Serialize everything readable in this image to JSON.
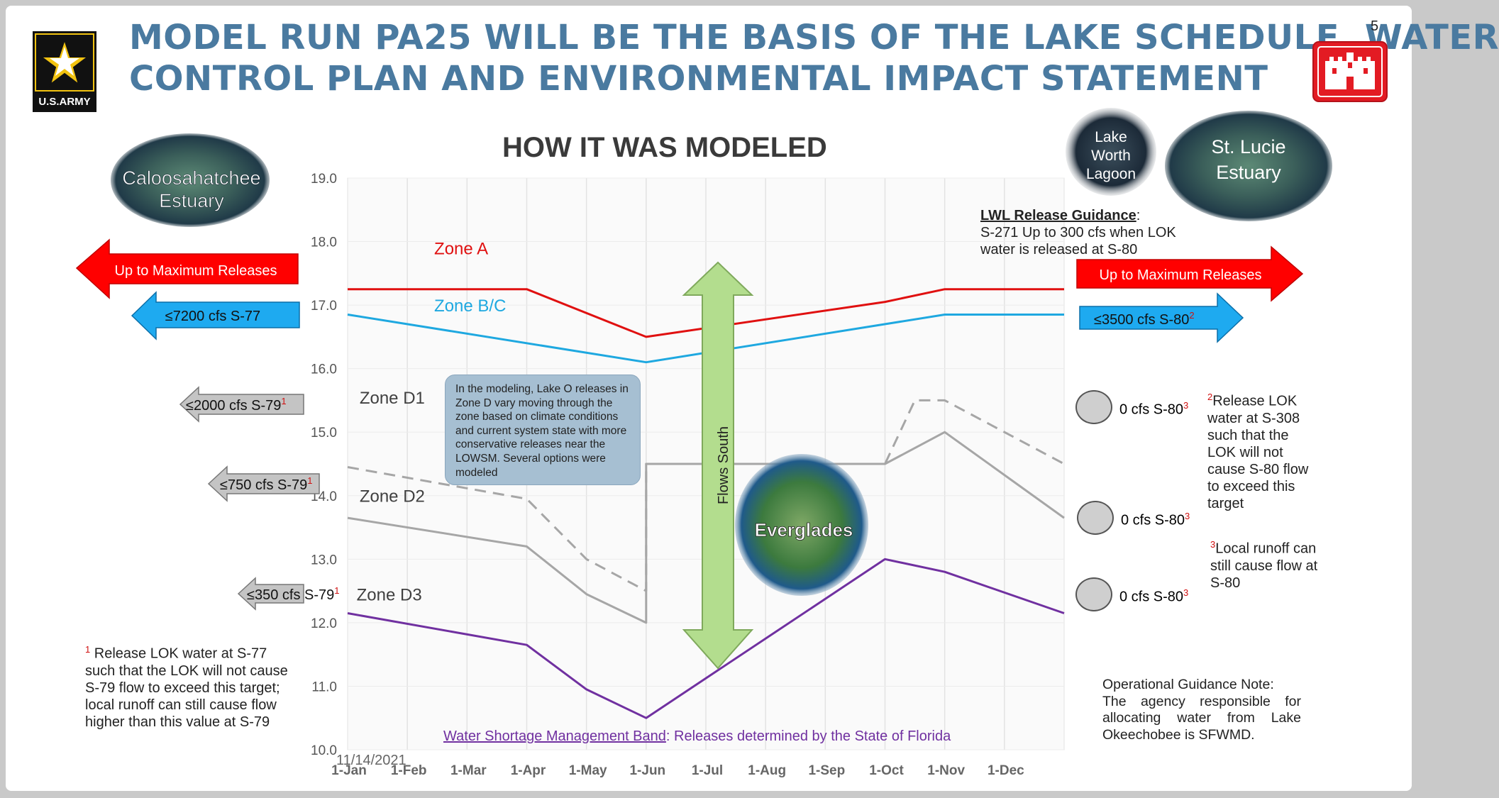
{
  "slide": {
    "page_number": "5",
    "title_line1": "MODEL RUN PA25 WILL BE THE BASIS OF THE LAKE SCHEDULE, WATER",
    "title_line2": "CONTROL PLAN AND ENVIRONMENTAL IMPACT STATEMENT",
    "date": "11/14/2021",
    "army_logo_text": "U.S.ARMY"
  },
  "photos": {
    "caloosahatchee": "Caloosahatchee Estuary",
    "lake_worth_1": "Lake",
    "lake_worth_2": "Worth",
    "lake_worth_3": "Lagoon",
    "st_lucie_1": "St. Lucie",
    "st_lucie_2": "Estuary",
    "everglades": "Everglades"
  },
  "west": {
    "max_release": "Up to Maximum Releases",
    "s77": "≤7200 cfs S-77",
    "s79_2000": "≤2000 cfs S-79",
    "s79_750": "≤750 cfs S-79",
    "s79_350": "≤350 cfs S-79",
    "sup1": "1",
    "footnote_1": "Release LOK water at S-77 such that the LOK will not cause S-79 flow to exceed this target; local runoff can still cause flow higher than this value at S-79"
  },
  "east": {
    "lwl_heading": "LWL Release Guidance",
    "lwl_colon": ":",
    "lwl_text": "S-271 Up to 300 cfs when LOK water is released at S-80",
    "max_release": "Up to Maximum Releases",
    "s80_3500": "≤3500 cfs S-80",
    "sup2": "2",
    "zero_s80": "0 cfs S-80",
    "sup3": "3",
    "footnote_2": "Release LOK water at S-308 such that the LOK will not cause S-80 flow to exceed this target",
    "footnote_3": "Local runoff can still cause flow at S-80",
    "op_heading": "Operational Guidance Note:",
    "op_text": "The agency responsible for allocating water from Lake Okeechobee is SFWMD."
  },
  "callout": "In the modeling, Lake O releases in Zone D vary moving through the zone based on climate conditions and current system state with more conservative releases near the LOWSM. Several options were modeled",
  "flows_label": "Flows South",
  "band_note": {
    "link": "Water Shortage Management Band",
    "rest": ": Releases determined by the State of Florida"
  },
  "chart_data": {
    "type": "line",
    "title": "HOW IT WAS MODELED",
    "xlabel": "",
    "ylabel": "",
    "x_ticks": [
      "1-Jan",
      "1-Feb",
      "1-Mar",
      "1-Apr",
      "1-May",
      "1-Jun",
      "1-Jul",
      "1-Aug",
      "1-Sep",
      "1-Oct",
      "1-Nov",
      "1-Dec"
    ],
    "x_range": [
      0,
      12
    ],
    "ylim": [
      10.0,
      19.0
    ],
    "y_ticks": [
      "10.0",
      "11.0",
      "12.0",
      "13.0",
      "14.0",
      "15.0",
      "16.0",
      "17.0",
      "18.0",
      "19.0"
    ],
    "grid": true,
    "zone_labels": [
      {
        "text": "Zone A",
        "x": 1.45,
        "y": 17.8,
        "color": "#e01010"
      },
      {
        "text": "Zone B/C",
        "x": 1.45,
        "y": 16.9,
        "color": "#1ea8e0"
      },
      {
        "text": "Zone D1",
        "x": 0.2,
        "y": 15.45,
        "color": "#404040"
      },
      {
        "text": "Zone D2",
        "x": 0.2,
        "y": 13.9,
        "color": "#404040"
      },
      {
        "text": "Zone D3",
        "x": 0.15,
        "y": 12.35,
        "color": "#404040"
      }
    ],
    "series": [
      {
        "color": "#e01010",
        "dash": false,
        "points": [
          [
            0,
            17.25
          ],
          [
            3,
            17.25
          ],
          [
            5,
            16.5
          ],
          [
            9,
            17.05
          ],
          [
            10,
            17.25
          ],
          [
            12,
            17.25
          ]
        ]
      },
      {
        "color": "#1ea8e0",
        "dash": false,
        "points": [
          [
            0,
            16.85
          ],
          [
            5,
            16.1
          ],
          [
            10,
            16.85
          ],
          [
            12,
            16.85
          ]
        ]
      },
      {
        "color": "#a6a6a6",
        "dash": true,
        "points": [
          [
            0,
            14.45
          ],
          [
            3,
            13.95
          ],
          [
            4,
            13.0
          ],
          [
            5,
            12.5
          ],
          [
            5,
            14.5
          ],
          [
            9,
            14.5
          ],
          [
            9.5,
            15.5
          ],
          [
            10,
            15.5
          ],
          [
            12,
            14.5
          ]
        ]
      },
      {
        "color": "#a6a6a6",
        "dash": false,
        "points": [
          [
            0,
            13.65
          ],
          [
            3,
            13.2
          ],
          [
            4,
            12.45
          ],
          [
            5,
            12.0
          ],
          [
            5,
            14.5
          ],
          [
            9,
            14.5
          ],
          [
            10,
            15.0
          ],
          [
            12,
            13.65
          ]
        ]
      },
      {
        "color": "#7030a0",
        "dash": false,
        "points": [
          [
            0,
            12.15
          ],
          [
            3,
            11.65
          ],
          [
            4,
            10.95
          ],
          [
            5,
            10.5
          ],
          [
            9,
            13.0
          ],
          [
            10,
            12.8
          ],
          [
            12,
            12.15
          ]
        ]
      }
    ]
  },
  "colors": {
    "red_arrow": "#ff0000",
    "blue_arrow": "#1eaaf0",
    "gray_arrow": "#bfbfbf",
    "green_arrow": "#b3dd8e",
    "title_blue": "#4a7aa0",
    "army_gold": "#f2c311",
    "usace_red": "#e31b23"
  },
  "icons": [
    "army-star-logo",
    "usace-castle-logo"
  ]
}
